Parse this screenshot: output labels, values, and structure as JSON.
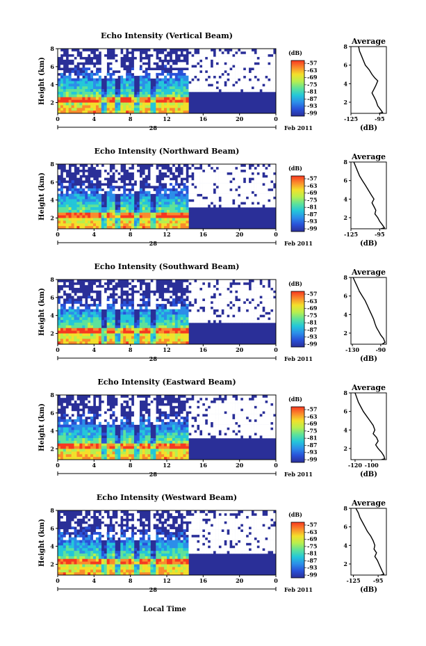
{
  "figure": {
    "time_axis_label": "Local Time",
    "date_label": "Feb 2011",
    "colorbar_unit": "(dB)",
    "profile_title": "Average",
    "profile_xlabel": "(dB)"
  },
  "colorbar": {
    "tick_labels": [
      "-57",
      "-63",
      "-69",
      "-75",
      "-81",
      "-87",
      "-93",
      "-99"
    ],
    "colors": [
      "#f73820",
      "#fb8c2c",
      "#f3e02b",
      "#b8ef4f",
      "#5ee29a",
      "#24c7d9",
      "#2c8ee9",
      "#2951d8",
      "#2a2f98"
    ]
  },
  "chart_data": [
    {
      "type": "heatmap",
      "title": "Echo Intensity (Vertical Beam)",
      "ylabel": "Height (km)",
      "xlabel": "Local Time",
      "x_ticks": [
        "0",
        "4",
        "8",
        "12",
        "16",
        "20",
        "0"
      ],
      "x_day_label": "28",
      "y_ticks": [
        "2",
        "4",
        "6",
        "8"
      ],
      "ylim": [
        0.8,
        8
      ],
      "xlim": [
        0,
        24
      ],
      "profile": {
        "x_ticks": [
          "-125",
          "-95"
        ],
        "xlim": [
          -125,
          -88
        ],
        "ylim": [
          0.8,
          8
        ],
        "points": [
          [
            -117,
            8
          ],
          [
            -116,
            7.5
          ],
          [
            -114,
            7
          ],
          [
            -112,
            6.5
          ],
          [
            -110,
            6
          ],
          [
            -106,
            5.5
          ],
          [
            -103,
            5
          ],
          [
            -100,
            4.6
          ],
          [
            -97,
            4.3
          ],
          [
            -99,
            3.8
          ],
          [
            -101,
            3.4
          ],
          [
            -103,
            3
          ],
          [
            -101,
            2.6
          ],
          [
            -99,
            2.2
          ],
          [
            -97,
            1.6
          ],
          [
            -94,
            1.2
          ],
          [
            -92,
            0.9
          ],
          [
            -96,
            0.8
          ]
        ]
      }
    },
    {
      "type": "heatmap",
      "title": "Echo Intensity (Northward Beam)",
      "ylabel": "Height (km)",
      "xlabel": "Local Time",
      "x_ticks": [
        "0",
        "4",
        "8",
        "12",
        "16",
        "20",
        "0"
      ],
      "x_day_label": "28",
      "y_ticks": [
        "2",
        "4",
        "6",
        "8"
      ],
      "ylim": [
        0.8,
        8
      ],
      "xlim": [
        0,
        24
      ],
      "profile": {
        "x_ticks": [
          "-125",
          "-95"
        ],
        "xlim": [
          -125,
          -88
        ],
        "ylim": [
          0.8,
          8
        ],
        "points": [
          [
            -122,
            8
          ],
          [
            -120,
            7.5
          ],
          [
            -118,
            7
          ],
          [
            -116,
            6.5
          ],
          [
            -113,
            6
          ],
          [
            -110,
            5.5
          ],
          [
            -107,
            5
          ],
          [
            -104,
            4.5
          ],
          [
            -101,
            4
          ],
          [
            -103,
            3.6
          ],
          [
            -101,
            3.2
          ],
          [
            -99,
            2.8
          ],
          [
            -100,
            2.4
          ],
          [
            -97,
            2
          ],
          [
            -95,
            1.6
          ],
          [
            -92,
            1.2
          ],
          [
            -90,
            0.9
          ],
          [
            -94,
            0.8
          ]
        ]
      }
    },
    {
      "type": "heatmap",
      "title": "Echo Intensity (Southward Beam)",
      "ylabel": "Height (km)",
      "xlabel": "Local Time",
      "x_ticks": [
        "0",
        "4",
        "8",
        "12",
        "16",
        "20",
        "0"
      ],
      "x_day_label": "28",
      "y_ticks": [
        "2",
        "4",
        "6",
        "8"
      ],
      "ylim": [
        0.8,
        8
      ],
      "xlim": [
        0,
        24
      ],
      "profile": {
        "x_ticks": [
          "-130",
          "-90"
        ],
        "xlim": [
          -132,
          -82
        ],
        "ylim": [
          0.8,
          8
        ],
        "points": [
          [
            -129,
            8
          ],
          [
            -126,
            7.5
          ],
          [
            -123,
            7
          ],
          [
            -120,
            6.5
          ],
          [
            -116,
            6
          ],
          [
            -112,
            5.5
          ],
          [
            -109,
            5
          ],
          [
            -106,
            4.5
          ],
          [
            -103,
            4
          ],
          [
            -100,
            3.5
          ],
          [
            -98,
            3
          ],
          [
            -96,
            2.6
          ],
          [
            -93,
            2.2
          ],
          [
            -90,
            1.8
          ],
          [
            -86,
            1.4
          ],
          [
            -84,
            1
          ],
          [
            -88,
            0.8
          ]
        ]
      }
    },
    {
      "type": "heatmap",
      "title": "Echo Intensity (Eastward Beam)",
      "ylabel": "Height (km)",
      "xlabel": "Local Time",
      "x_ticks": [
        "0",
        "4",
        "8",
        "12",
        "16",
        "20",
        "0"
      ],
      "x_day_label": "28",
      "y_ticks": [
        "2",
        "4",
        "6",
        "8"
      ],
      "ylim": [
        0.8,
        8
      ],
      "xlim": [
        0,
        24
      ],
      "profile": {
        "x_ticks": [
          "-120",
          "-100"
        ],
        "xlim": [
          -125,
          -82
        ],
        "ylim": [
          0.8,
          8
        ],
        "points": [
          [
            -120,
            8
          ],
          [
            -118,
            7.5
          ],
          [
            -116,
            7
          ],
          [
            -113,
            6.5
          ],
          [
            -110,
            6
          ],
          [
            -106,
            5.5
          ],
          [
            -102,
            5
          ],
          [
            -98,
            4.5
          ],
          [
            -96,
            4
          ],
          [
            -98,
            3.6
          ],
          [
            -94,
            3.2
          ],
          [
            -92,
            2.8
          ],
          [
            -95,
            2.4
          ],
          [
            -92,
            2
          ],
          [
            -88,
            1.6
          ],
          [
            -85,
            1.2
          ],
          [
            -84,
            0.9
          ],
          [
            -88,
            0.8
          ]
        ]
      }
    },
    {
      "type": "heatmap",
      "title": "Echo Intensity (Westward Beam)",
      "ylabel": "Height (km)",
      "xlabel": "Local Time",
      "x_ticks": [
        "0",
        "4",
        "8",
        "12",
        "16",
        "20",
        "0"
      ],
      "x_day_label": "28",
      "y_ticks": [
        "2",
        "4",
        "6",
        "8"
      ],
      "ylim": [
        0.8,
        8
      ],
      "xlim": [
        0,
        24
      ],
      "profile": {
        "x_ticks": [
          "-125",
          "-95"
        ],
        "xlim": [
          -128,
          -85
        ],
        "ylim": [
          0.8,
          8
        ],
        "points": [
          [
            -122,
            8
          ],
          [
            -119,
            7.5
          ],
          [
            -117,
            7
          ],
          [
            -114,
            6.5
          ],
          [
            -111,
            6
          ],
          [
            -108,
            5.5
          ],
          [
            -104,
            5
          ],
          [
            -101,
            4.5
          ],
          [
            -99,
            4
          ],
          [
            -100,
            3.6
          ],
          [
            -97,
            3.2
          ],
          [
            -99,
            2.8
          ],
          [
            -96,
            2.4
          ],
          [
            -94,
            2
          ],
          [
            -92,
            1.6
          ],
          [
            -90,
            1.2
          ],
          [
            -88,
            0.9
          ],
          [
            -92,
            0.8
          ]
        ]
      }
    }
  ]
}
